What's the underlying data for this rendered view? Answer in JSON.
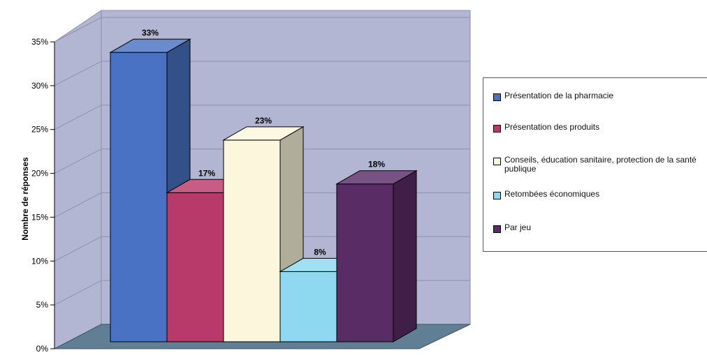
{
  "chart_data": {
    "type": "bar",
    "ylabel": "Nombre de réponses",
    "ylim": [
      0,
      35
    ],
    "y_ticks": [
      "0%",
      "5%",
      "10%",
      "15%",
      "20%",
      "25%",
      "30%",
      "35%"
    ],
    "categories": [
      "Présentation de la pharmacie",
      "Présentation des produits",
      "Conseils, éducation sanitaire, protection de la santé publique",
      "Retombées économiques",
      "Par jeu"
    ],
    "values": [
      33,
      17,
      23,
      8,
      18
    ],
    "data_labels": [
      "33%",
      "17%",
      "23%",
      "8%",
      "18%"
    ],
    "colors": [
      "#4a72c4",
      "#b83a6a",
      "#fcf7dc",
      "#8ed8f0",
      "#5a2c66"
    ],
    "grid": true,
    "legend_position": "right",
    "wall_color": "#b3b6d3",
    "floor_color": "#607f95"
  },
  "legend": {
    "items": [
      {
        "label": "Présentation de la pharmacie",
        "color": "#4a72c4"
      },
      {
        "label": "Présentation des produits",
        "color": "#b83a6a"
      },
      {
        "label": "Conseils, éducation sanitaire, protection de la santé publique",
        "color": "#fcf7dc"
      },
      {
        "label": "Retombées économiques",
        "color": "#8ed8f0"
      },
      {
        "label": "Par jeu",
        "color": "#5a2c66"
      }
    ]
  }
}
